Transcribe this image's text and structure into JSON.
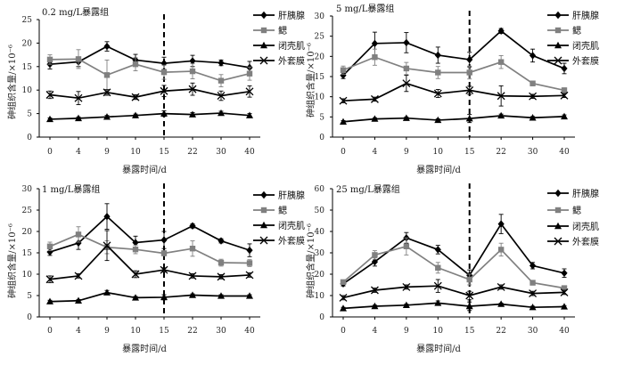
{
  "chart_data": [
    {
      "type": "line",
      "title": "0.2 mg/L暴露组",
      "xlabel": "暴露时间/d",
      "ylabel": "砷组织含量/×10⁻⁶",
      "categories": [
        "0",
        "4",
        "9",
        "10",
        "15",
        "22",
        "30",
        "40"
      ],
      "ylim": [
        0,
        25
      ],
      "yticks": [
        0,
        5,
        10,
        15,
        20,
        25
      ],
      "dashed_line_at": "15",
      "series": [
        {
          "name": "肝胰腺",
          "marker": "diamond",
          "color": "#000000",
          "values": [
            15.5,
            16.0,
            19.3,
            16.4,
            15.7,
            16.2,
            15.8,
            14.8
          ],
          "errors": [
            1.0,
            1.0,
            1.0,
            1.2,
            1.3,
            1.2,
            0.6,
            1.3
          ]
        },
        {
          "name": "鳃",
          "marker": "square",
          "color": "#808080",
          "values": [
            16.5,
            16.6,
            13.2,
            15.5,
            13.8,
            14.0,
            12.0,
            13.5
          ],
          "errors": [
            1.0,
            2.0,
            3.2,
            1.4,
            1.5,
            1.6,
            1.3,
            1.4
          ]
        },
        {
          "name": "闭壳肌",
          "marker": "triangle",
          "color": "#000000",
          "values": [
            3.8,
            4.0,
            4.3,
            4.6,
            5.0,
            4.8,
            5.1,
            4.6
          ],
          "errors": [
            0.3,
            0.3,
            0.3,
            0.3,
            0.6,
            0.4,
            0.4,
            0.4
          ]
        },
        {
          "name": "外套膜",
          "marker": "x",
          "color": "#000000",
          "values": [
            9.0,
            8.3,
            9.5,
            8.5,
            9.8,
            10.2,
            8.8,
            9.7
          ],
          "errors": [
            0.8,
            1.4,
            0.6,
            0.5,
            1.2,
            1.3,
            1.0,
            1.2
          ]
        }
      ]
    },
    {
      "type": "line",
      "title": "5 mg/L暴露组",
      "xlabel": "暴露时间/d",
      "ylabel": "砷组织含量/×10⁻⁶",
      "categories": [
        "0",
        "4",
        "9",
        "10",
        "15",
        "22",
        "30",
        "40"
      ],
      "ylim": [
        0,
        30
      ],
      "yticks": [
        0,
        5,
        10,
        15,
        20,
        25,
        30
      ],
      "dashed_line_at": "15",
      "series": [
        {
          "name": "肝胰腺",
          "marker": "diamond",
          "color": "#000000",
          "values": [
            15.3,
            23.2,
            23.4,
            20.3,
            19.2,
            26.3,
            20.2,
            17.0
          ],
          "errors": [
            0.8,
            2.8,
            2.5,
            2.0,
            1.8,
            0.6,
            1.6,
            1.3
          ]
        },
        {
          "name": "鳃",
          "marker": "square",
          "color": "#808080",
          "values": [
            16.6,
            19.8,
            17.0,
            16.0,
            16.0,
            18.6,
            13.3,
            11.6
          ],
          "errors": [
            1.0,
            2.0,
            1.5,
            1.5,
            1.6,
            1.6,
            0.6,
            0.6
          ]
        },
        {
          "name": "闭壳肌",
          "marker": "triangle",
          "color": "#000000",
          "values": [
            3.8,
            4.5,
            4.7,
            4.2,
            4.6,
            5.3,
            4.8,
            5.1
          ],
          "errors": [
            0.3,
            0.3,
            0.3,
            0.3,
            1.0,
            0.4,
            0.3,
            0.4
          ]
        },
        {
          "name": "外套膜",
          "marker": "x",
          "color": "#000000",
          "values": [
            9.0,
            9.4,
            13.3,
            10.8,
            11.6,
            10.2,
            10.1,
            10.3
          ],
          "errors": [
            0.5,
            0.5,
            2.0,
            1.0,
            1.0,
            2.5,
            0.5,
            0.5
          ]
        }
      ]
    },
    {
      "type": "line",
      "title": "1 mg/L暴露组",
      "xlabel": "暴露时间/d",
      "ylabel": "砷组织含量/×10⁻⁶",
      "categories": [
        "0",
        "4",
        "9",
        "10",
        "15",
        "22",
        "30",
        "40"
      ],
      "ylim": [
        0,
        30
      ],
      "yticks": [
        0,
        5,
        10,
        15,
        20,
        25,
        30
      ],
      "dashed_line_at": "15",
      "series": [
        {
          "name": "肝胰腺",
          "marker": "diamond",
          "color": "#000000",
          "values": [
            15.2,
            17.3,
            23.5,
            17.4,
            18.0,
            21.3,
            17.8,
            15.6
          ],
          "errors": [
            0.8,
            1.5,
            3.0,
            1.5,
            2.0,
            0.5,
            0.5,
            1.5
          ]
        },
        {
          "name": "鳃",
          "marker": "square",
          "color": "#808080",
          "values": [
            16.5,
            19.3,
            16.3,
            15.8,
            14.9,
            16.0,
            12.7,
            12.6
          ],
          "errors": [
            1.0,
            1.8,
            1.5,
            1.0,
            0.6,
            1.8,
            0.8,
            0.8
          ]
        },
        {
          "name": "闭壳肌",
          "marker": "triangle",
          "color": "#000000",
          "values": [
            3.6,
            3.8,
            5.7,
            4.5,
            4.6,
            5.1,
            4.9,
            4.9
          ],
          "errors": [
            0.3,
            0.3,
            0.5,
            0.3,
            0.6,
            0.3,
            0.3,
            0.3
          ]
        },
        {
          "name": "外套膜",
          "marker": "x",
          "color": "#000000",
          "values": [
            8.8,
            9.6,
            16.7,
            10.0,
            11.0,
            9.6,
            9.4,
            9.8
          ],
          "errors": [
            0.8,
            0.5,
            3.5,
            0.8,
            0.5,
            0.5,
            0.5,
            0.5
          ]
        }
      ]
    },
    {
      "type": "line",
      "title": "25 mg/L暴露组",
      "xlabel": "暴露时间/d",
      "ylabel": "砷组织含量/×10⁻⁶",
      "categories": [
        "0",
        "4",
        "9",
        "10",
        "15",
        "22",
        "30",
        "40"
      ],
      "ylim": [
        0,
        60
      ],
      "yticks": [
        0,
        10,
        20,
        30,
        40,
        50,
        60
      ],
      "dashed_line_at": "15",
      "series": [
        {
          "name": "肝胰腺",
          "marker": "diamond",
          "color": "#000000",
          "values": [
            15.5,
            25.8,
            37.0,
            31.5,
            19.5,
            43.5,
            24.0,
            20.5
          ],
          "errors": [
            1.0,
            2.0,
            2.5,
            2.0,
            2.5,
            4.5,
            1.5,
            2.0
          ]
        },
        {
          "name": "鳃",
          "marker": "square",
          "color": "#808080",
          "values": [
            16.3,
            29.0,
            33.0,
            23.0,
            17.5,
            31.5,
            16.0,
            13.5
          ],
          "errors": [
            1.0,
            2.0,
            4.0,
            2.5,
            2.5,
            3.0,
            1.0,
            1.0
          ]
        },
        {
          "name": "闭壳肌",
          "marker": "triangle",
          "color": "#000000",
          "values": [
            4.0,
            5.0,
            5.5,
            6.5,
            5.0,
            6.0,
            4.5,
            4.8
          ],
          "errors": [
            0.5,
            0.5,
            0.5,
            1.0,
            2.0,
            0.5,
            0.5,
            0.5
          ]
        },
        {
          "name": "外套膜",
          "marker": "x",
          "color": "#000000",
          "values": [
            9.0,
            12.5,
            14.0,
            14.5,
            10.0,
            14.0,
            11.0,
            11.5
          ],
          "errors": [
            1.0,
            1.0,
            1.0,
            3.0,
            2.0,
            1.0,
            1.0,
            1.0
          ]
        }
      ]
    }
  ]
}
